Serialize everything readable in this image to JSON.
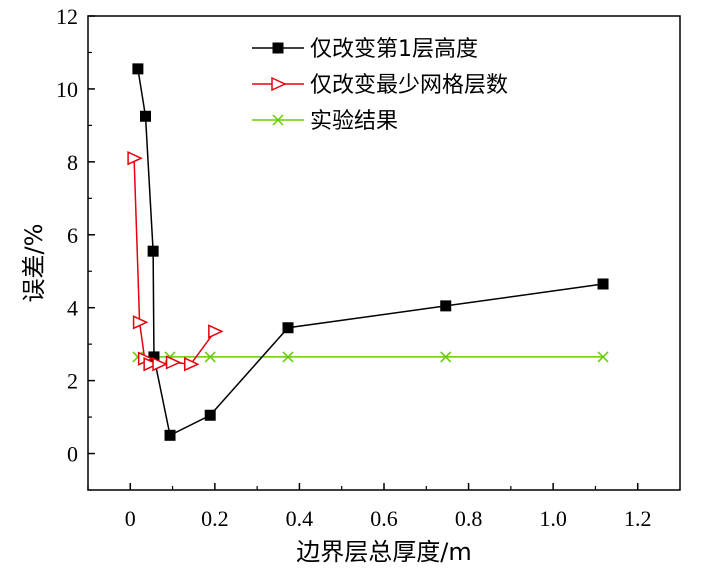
{
  "chart_data": {
    "type": "line",
    "xlabel": "边界层总厚度/m",
    "ylabel": "误差/%",
    "xlim": [
      -0.1,
      1.3
    ],
    "ylim": [
      -1,
      12
    ],
    "x_ticks": [
      0,
      0.2,
      0.4,
      0.6,
      0.8,
      1.0,
      1.2
    ],
    "x_tick_labels": [
      "0",
      "0.2",
      "0.4",
      "0.6",
      "0.8",
      "1.0",
      "1.2"
    ],
    "y_ticks": [
      0,
      2,
      4,
      6,
      8,
      10,
      12
    ],
    "y_tick_labels": [
      "0",
      "2",
      "4",
      "6",
      "8",
      "10",
      "12"
    ],
    "grid": false,
    "legend_position": "top-right",
    "series": [
      {
        "name": "仅改变第1层高度",
        "color": "#000000",
        "marker": "square",
        "x": [
          0.018,
          0.036,
          0.054,
          0.056,
          0.094,
          0.189,
          0.373,
          0.746,
          1.118
        ],
        "y": [
          10.55,
          9.25,
          5.55,
          2.65,
          0.5,
          1.05,
          3.45,
          4.05,
          4.65
        ]
      },
      {
        "name": "仅改变最少网格层数",
        "color": "#e8000b",
        "marker": "triangle-right",
        "x": [
          0.009,
          0.022,
          0.034,
          0.047,
          0.068,
          0.1,
          0.143,
          0.2
        ],
        "y": [
          8.1,
          3.6,
          2.6,
          2.45,
          2.45,
          2.5,
          2.45,
          3.35
        ]
      },
      {
        "name": "实验结果",
        "color": "#66cc00",
        "marker": "x",
        "x": [
          0.018,
          0.056,
          0.094,
          0.189,
          0.373,
          0.746,
          1.118
        ],
        "y": [
          2.65,
          2.65,
          2.65,
          2.65,
          2.65,
          2.65,
          2.65
        ]
      }
    ]
  }
}
